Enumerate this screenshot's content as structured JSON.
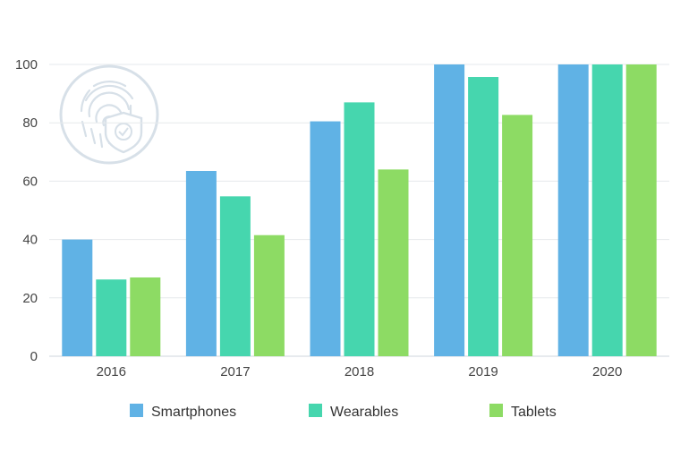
{
  "chart_data": {
    "type": "bar",
    "categories": [
      "2016",
      "2017",
      "2018",
      "2019",
      "2020"
    ],
    "series": [
      {
        "name": "Smartphones",
        "color": "#60b2e5",
        "values": [
          40,
          63.5,
          80.5,
          100,
          100
        ]
      },
      {
        "name": "Wearables",
        "color": "#46d6ae",
        "values": [
          26.3,
          54.8,
          87,
          95.7,
          100
        ]
      },
      {
        "name": "Tablets",
        "color": "#8ddb64",
        "values": [
          27,
          41.5,
          64,
          82.7,
          100
        ]
      }
    ],
    "ylim": [
      0,
      100
    ],
    "yticks": [
      "0",
      "20",
      "40",
      "60",
      "80",
      "100"
    ],
    "grid": true,
    "legend": "bottom",
    "watermark_icon": "fingerprint-shield-icon"
  }
}
